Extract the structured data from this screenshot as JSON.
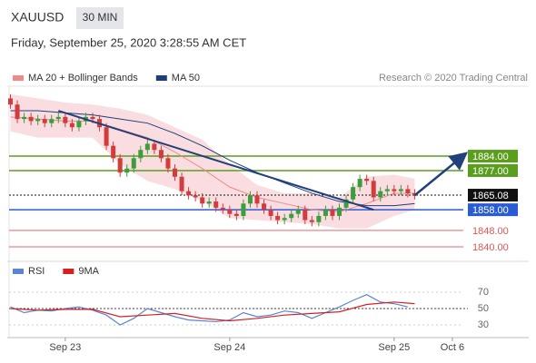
{
  "header": {
    "symbol": "XAUUSD",
    "timeframe": "30 MIN",
    "datetime": "Friday, September 25, 2020 3:28:55 AM CET"
  },
  "source": "Research © 2020 Trading Central",
  "chart_data": [
    {
      "type": "candlestick",
      "xlim": [
        -8.2,
        58.1
      ],
      "ylim": [
        1834.3,
        1917.9
      ],
      "xticks": [
        {
          "value": 0,
          "label": "Sep 23"
        },
        {
          "value": 24,
          "label": "Sep 24"
        },
        {
          "value": 48,
          "label": "Sep 25"
        },
        {
          "value": 56.5,
          "label": "Oct 6"
        }
      ],
      "up_color": "#3c9d3c",
      "down_color": "#d23c3c",
      "candles": {
        "x": [
          -8,
          -7,
          -6,
          -5,
          -4,
          -3,
          -2,
          -1,
          0,
          1,
          2,
          3,
          4,
          5,
          6,
          7,
          8,
          9,
          10,
          11,
          12,
          13,
          14,
          15,
          16,
          17,
          18,
          19,
          20,
          21,
          22,
          23,
          24,
          25,
          26,
          27,
          28,
          29,
          30,
          31,
          32,
          33,
          34,
          35,
          36,
          37,
          38,
          39,
          40,
          41,
          42,
          43,
          44,
          45,
          46,
          47,
          48,
          49,
          50,
          51
        ],
        "open": [
          1912,
          1909,
          1902,
          1903,
          1901,
          1902,
          1900,
          1902,
          1903,
          1900,
          1898,
          1901,
          1903,
          1902,
          1898,
          1889,
          1883,
          1876,
          1878,
          1883,
          1887,
          1890,
          1887,
          1883,
          1878,
          1874,
          1867,
          1865,
          1864,
          1861,
          1862,
          1859,
          1858,
          1856,
          1855,
          1861,
          1865,
          1861,
          1858,
          1855,
          1853,
          1854,
          1856,
          1858,
          1853,
          1852,
          1855,
          1858,
          1855,
          1859,
          1863,
          1869,
          1873,
          1872,
          1864,
          1867,
          1868,
          1867,
          1868,
          1866
        ],
        "high": [
          1914,
          1911,
          1905,
          1905,
          1904,
          1904,
          1904,
          1905,
          1905,
          1902,
          1903,
          1905,
          1905,
          1904,
          1900,
          1891,
          1885,
          1880,
          1885,
          1889,
          1892,
          1892,
          1889,
          1885,
          1880,
          1876,
          1869,
          1867,
          1866,
          1864,
          1864,
          1861,
          1860,
          1858,
          1863,
          1867,
          1867,
          1863,
          1860,
          1857,
          1856,
          1858,
          1860,
          1860,
          1855,
          1857,
          1860,
          1860,
          1861,
          1865,
          1871,
          1875,
          1875,
          1874,
          1869,
          1870,
          1870,
          1870,
          1870,
          1868
        ],
        "low": [
          1907,
          1900,
          1900,
          1899,
          1899,
          1898,
          1898,
          1900,
          1898,
          1896,
          1896,
          1899,
          1900,
          1896,
          1887,
          1881,
          1874,
          1874,
          1876,
          1881,
          1885,
          1885,
          1881,
          1876,
          1872,
          1865,
          1863,
          1862,
          1859,
          1859,
          1857,
          1856,
          1854,
          1853,
          1853,
          1859,
          1859,
          1856,
          1853,
          1851,
          1851,
          1852,
          1854,
          1851,
          1850,
          1850,
          1853,
          1853,
          1853,
          1857,
          1861,
          1867,
          1870,
          1862,
          1862,
          1865,
          1865,
          1865,
          1864,
          1863
        ],
        "close": [
          1909,
          1902,
          1903,
          1901,
          1902,
          1900,
          1902,
          1903,
          1900,
          1898,
          1901,
          1903,
          1902,
          1898,
          1889,
          1883,
          1876,
          1878,
          1883,
          1887,
          1890,
          1887,
          1883,
          1878,
          1874,
          1867,
          1865,
          1864,
          1861,
          1862,
          1859,
          1858,
          1856,
          1855,
          1861,
          1865,
          1861,
          1858,
          1855,
          1853,
          1854,
          1856,
          1858,
          1853,
          1852,
          1855,
          1858,
          1855,
          1859,
          1863,
          1869,
          1873,
          1872,
          1864,
          1867,
          1868,
          1867,
          1868,
          1866,
          1865.08
        ]
      },
      "x": [
        -8,
        -4,
        0,
        4,
        8,
        12,
        16,
        20,
        24,
        28,
        32,
        36,
        40,
        44,
        48,
        51
      ],
      "bands": {
        "color": "#f6cfd3",
        "upper": [
          1914,
          1912,
          1910,
          1909,
          1907,
          1904,
          1898,
          1892,
          1880,
          1870,
          1866,
          1866,
          1864,
          1874,
          1875,
          1873
        ],
        "lower": [
          1896,
          1893,
          1893,
          1893,
          1880,
          1872,
          1868,
          1862,
          1854,
          1853,
          1852,
          1851,
          1849,
          1849,
          1855,
          1858
        ]
      },
      "series": [
        {
          "name": "MA 20 + Bollinger Bands",
          "color": "#f08a8a",
          "values": [
            1903,
            1902,
            1901,
            1901,
            1897,
            1893,
            1886,
            1878,
            1869,
            1864,
            1861,
            1858,
            1857,
            1861,
            1866,
            1866
          ]
        },
        {
          "name": "MA 50",
          "color": "#1f3f7a",
          "values": [
            1906,
            1906,
            1905,
            1904,
            1902,
            1900,
            1895,
            1889,
            1882,
            1876,
            1871,
            1866,
            1862,
            1860,
            1860,
            1861
          ]
        }
      ],
      "trendline": {
        "color": "#22407a",
        "x": [
          -1,
          45
        ],
        "y": [
          1906,
          1858
        ]
      },
      "arrow": {
        "color": "#22407a",
        "x": [
          51,
          58
        ],
        "y": [
          1865,
          1884
        ]
      },
      "levels": [
        {
          "value": 1884,
          "label": "1884.00",
          "color": "#5a9e1e",
          "style": "box"
        },
        {
          "value": 1877,
          "label": "1877.00",
          "color": "#5a9e1e",
          "style": "box"
        },
        {
          "value": 1865.08,
          "label": "1865.08",
          "color": "#111111",
          "style": "dotted-box"
        },
        {
          "value": 1858,
          "label": "1858.00",
          "color": "#2a5bd7",
          "style": "box"
        },
        {
          "value": 1848,
          "label": "1848.00",
          "color": "#e05555",
          "style": "text"
        },
        {
          "value": 1840,
          "label": "1840.00",
          "color": "#e05555",
          "style": "text"
        }
      ]
    },
    {
      "type": "line",
      "ylim": [
        16.7,
        83.3
      ],
      "yticks": [
        70,
        50,
        30
      ],
      "level": 50,
      "series": [
        {
          "name": "RSI",
          "color": "#5b84d6",
          "x": [
            -8,
            -6,
            -4,
            -2,
            0,
            2,
            4,
            6,
            8,
            10,
            12,
            14,
            16,
            18,
            20,
            22,
            24,
            26,
            28,
            30,
            32,
            34,
            36,
            38,
            40,
            42,
            44,
            46,
            48,
            50
          ],
          "values": [
            52,
            45,
            48,
            47,
            50,
            52,
            48,
            42,
            30,
            38,
            50,
            45,
            40,
            36,
            35,
            34,
            36,
            45,
            40,
            42,
            47,
            45,
            38,
            45,
            52,
            60,
            67,
            58,
            56,
            52
          ]
        },
        {
          "name": "9MA",
          "color": "#d62020",
          "x": [
            -8,
            -4,
            0,
            4,
            8,
            12,
            16,
            20,
            24,
            28,
            32,
            36,
            40,
            44,
            48,
            51
          ],
          "values": [
            50,
            48,
            49,
            49,
            40,
            42,
            44,
            38,
            35,
            38,
            42,
            44,
            46,
            55,
            58,
            56
          ]
        }
      ]
    }
  ]
}
